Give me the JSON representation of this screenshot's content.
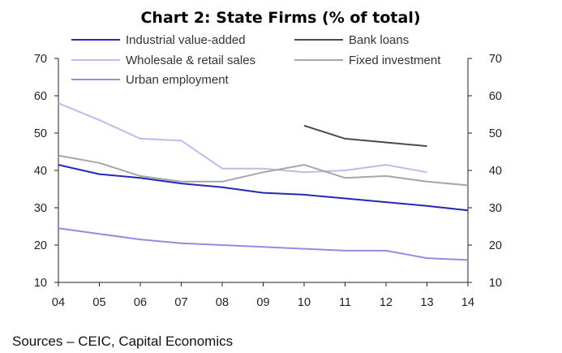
{
  "chart_data": {
    "type": "line",
    "title": "Chart 2: State Firms (% of total)",
    "source": "Sources – CEIC, Capital Economics",
    "x": [
      "04",
      "05",
      "06",
      "07",
      "08",
      "09",
      "10",
      "11",
      "12",
      "13",
      "14"
    ],
    "ylim": [
      10,
      70
    ],
    "yticks": [
      "70",
      "60",
      "50",
      "40",
      "30",
      "20",
      "10"
    ],
    "y2ticks": [
      "70",
      "60",
      "50",
      "40",
      "30",
      "20",
      "10"
    ],
    "grid": false,
    "legend_placement": "top",
    "series": [
      {
        "name": "Industrial value-added",
        "color": "#2626b8",
        "values": [
          41.5,
          39,
          38,
          36.5,
          35.5,
          34,
          33.5,
          32.5,
          31.5,
          30.5,
          29.3
        ]
      },
      {
        "name": "Bank loans",
        "color": "#4a4a4a",
        "values": [
          null,
          null,
          null,
          null,
          null,
          null,
          52,
          48.5,
          47.5,
          46.5,
          null
        ]
      },
      {
        "name": "Wholesale & retail sales",
        "color": "#b9bdee",
        "values": [
          58,
          53.5,
          48.5,
          48,
          40.5,
          40.5,
          39.5,
          40,
          41.5,
          39.5,
          null
        ]
      },
      {
        "name": "Fixed investment",
        "color": "#a6a6a6",
        "values": [
          44,
          42,
          38.5,
          37,
          37,
          39.5,
          41.5,
          38,
          38.5,
          37,
          36
        ]
      },
      {
        "name": "Urban employment",
        "color": "#8f8ee0",
        "values": [
          24.5,
          23,
          21.5,
          20.5,
          20,
          19.5,
          19,
          18.5,
          18.5,
          16.5,
          16
        ]
      }
    ]
  }
}
